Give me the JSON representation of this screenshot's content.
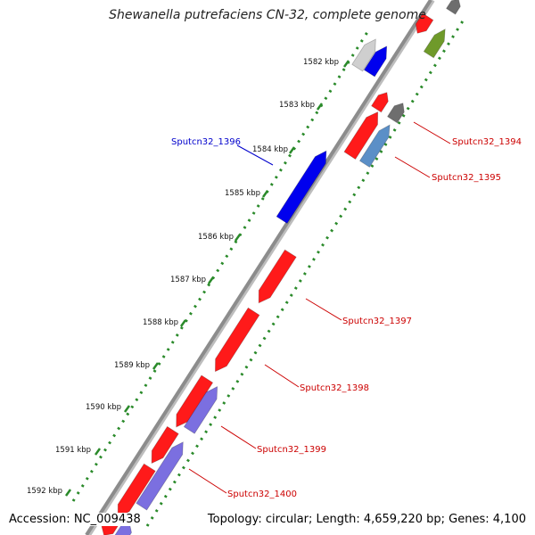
{
  "title": "Shewanella putrefaciens CN-32, complete genome",
  "footer": {
    "accession": "Accession: NC_009438",
    "topology": "Topology: circular; Length: 4,659,220 bp; Genes: 4,100"
  },
  "ticks": [
    {
      "label": "1582 kbp"
    },
    {
      "label": "1583 kbp"
    },
    {
      "label": "1584 kbp"
    },
    {
      "label": "1585 kbp"
    },
    {
      "label": "1586 kbp"
    },
    {
      "label": "1587 kbp"
    },
    {
      "label": "1588 kbp"
    },
    {
      "label": "1589 kbp"
    },
    {
      "label": "1590 kbp"
    },
    {
      "label": "1591 kbp"
    },
    {
      "label": "1592 kbp"
    }
  ],
  "gene_labels": [
    {
      "text": "Sputcn32_1396",
      "color": "#0000cc"
    },
    {
      "text": "Sputcn32_1394",
      "color": "#cc0000"
    },
    {
      "text": "Sputcn32_1395",
      "color": "#cc0000"
    },
    {
      "text": "Sputcn32_1397",
      "color": "#cc0000"
    },
    {
      "text": "Sputcn32_1398",
      "color": "#cc0000"
    },
    {
      "text": "Sputcn32_1399",
      "color": "#cc0000"
    },
    {
      "text": "Sputcn32_1400",
      "color": "#cc0000"
    }
  ],
  "colors": {
    "backbone": "#8c8c8c",
    "forward_gene": "#ff1a1a",
    "reverse_gene": "#0000ee",
    "steel_gene": "#5b8fc7",
    "gray_gene": "#6e6e6e",
    "silver_gene": "#cfcfcf",
    "olive_gene": "#6f9a2a",
    "lavender_gene": "#7b6fe0",
    "tick_dots": "#2a8a2a"
  }
}
